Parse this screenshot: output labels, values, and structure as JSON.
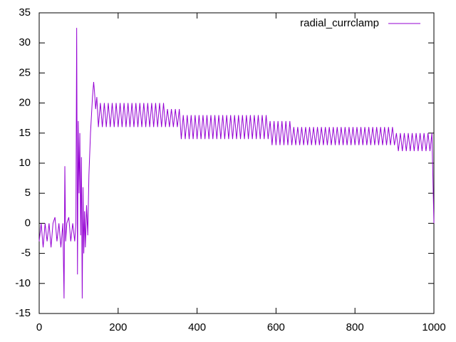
{
  "chart_data": {
    "type": "line",
    "x": [
      0,
      5,
      10,
      15,
      20,
      25,
      30,
      35,
      40,
      45,
      50,
      55,
      60,
      63,
      65,
      67,
      70,
      75,
      80,
      85,
      90,
      93,
      95,
      97,
      99,
      101,
      103,
      105,
      107,
      109,
      111,
      113,
      115,
      117,
      120,
      123,
      126,
      130,
      135,
      138,
      140,
      143,
      146,
      150,
      155,
      160,
      165,
      170,
      175,
      180,
      185,
      190,
      195,
      200,
      205,
      210,
      215,
      220,
      225,
      230,
      235,
      240,
      245,
      250,
      255,
      260,
      265,
      270,
      275,
      280,
      285,
      290,
      295,
      300,
      305,
      310,
      315,
      320,
      325,
      330,
      335,
      340,
      345,
      350,
      355,
      360,
      365,
      370,
      375,
      380,
      385,
      390,
      395,
      400,
      405,
      410,
      415,
      420,
      425,
      430,
      435,
      440,
      445,
      450,
      455,
      460,
      465,
      470,
      475,
      480,
      485,
      490,
      495,
      500,
      505,
      510,
      515,
      520,
      525,
      530,
      535,
      540,
      545,
      550,
      555,
      560,
      565,
      570,
      575,
      580,
      585,
      590,
      595,
      600,
      605,
      610,
      615,
      620,
      625,
      630,
      635,
      640,
      645,
      650,
      655,
      660,
      665,
      670,
      675,
      680,
      685,
      690,
      695,
      700,
      705,
      710,
      715,
      720,
      725,
      730,
      735,
      740,
      745,
      750,
      755,
      760,
      765,
      770,
      775,
      780,
      785,
      790,
      795,
      800,
      805,
      810,
      815,
      820,
      825,
      830,
      835,
      840,
      845,
      850,
      855,
      860,
      865,
      870,
      875,
      880,
      885,
      890,
      895,
      900,
      905,
      910,
      915,
      920,
      925,
      930,
      935,
      940,
      945,
      950,
      955,
      960,
      965,
      970,
      975,
      980,
      985,
      990,
      995,
      1000
    ],
    "series": [
      {
        "name": "radial_currclamp",
        "color": "#9400d3",
        "values": [
          -3,
          0,
          -4,
          0,
          -3,
          0,
          -4,
          0,
          1,
          -3,
          0,
          -4,
          0,
          -12.5,
          9.5,
          -3,
          0,
          1,
          -3,
          0,
          -3,
          0,
          32.5,
          -8.5,
          17,
          5,
          15,
          -2,
          11,
          -12.5,
          6,
          -5,
          2,
          -4,
          3,
          -2,
          8,
          15,
          21,
          23.5,
          22,
          19,
          21,
          16,
          20,
          16,
          20,
          16,
          20,
          16,
          20,
          16,
          20,
          16,
          20,
          16,
          20,
          16,
          20,
          16,
          20,
          16,
          20,
          16,
          20,
          16,
          20,
          16,
          20,
          16,
          20,
          16,
          20,
          16,
          20,
          16,
          20,
          16,
          19,
          16,
          19,
          16,
          19,
          16,
          19,
          14,
          18,
          14,
          18,
          14,
          18,
          14,
          18,
          14,
          18,
          14,
          18,
          14,
          18,
          14,
          18,
          14,
          18,
          14,
          18,
          14,
          18,
          14,
          18,
          14,
          18,
          14,
          18,
          14,
          18,
          14,
          18,
          14,
          18,
          14,
          18,
          14,
          18,
          14,
          18,
          14,
          18,
          14,
          18,
          14,
          17,
          13,
          17,
          13,
          17,
          13,
          17,
          13,
          17,
          13,
          17,
          13,
          16,
          13,
          16,
          13,
          16,
          13,
          16,
          13,
          16,
          13,
          16,
          13,
          16,
          13,
          16,
          13,
          16,
          13,
          16,
          13,
          16,
          13,
          16,
          13,
          16,
          13,
          16,
          13,
          16,
          13,
          16,
          13,
          16,
          13,
          16,
          13,
          16,
          13,
          16,
          13,
          16,
          13,
          16,
          13,
          16,
          13,
          16,
          13,
          16,
          13,
          16,
          13,
          15,
          12,
          15,
          12,
          15,
          12,
          15,
          12,
          15,
          12,
          15,
          12,
          15,
          12,
          15,
          12,
          15,
          12,
          15,
          0
        ]
      }
    ],
    "xlim": [
      0,
      1000
    ],
    "xticks": [
      0,
      200,
      400,
      600,
      800,
      1000
    ],
    "ylim": [
      -15,
      35
    ],
    "yticks": [
      -15,
      -10,
      -5,
      0,
      5,
      10,
      15,
      20,
      25,
      30,
      35
    ],
    "legend": "top-right"
  }
}
